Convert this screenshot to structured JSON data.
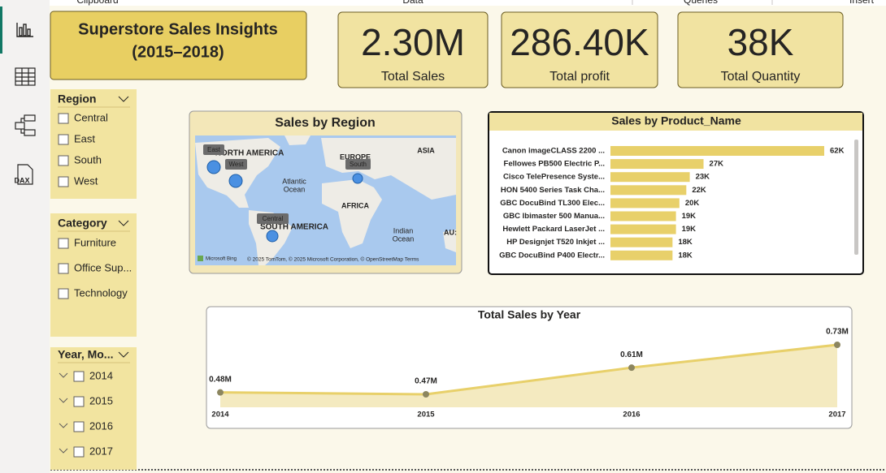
{
  "ribbon": [
    "Clipboard",
    "Data",
    "Queries",
    "Insert"
  ],
  "nav": {
    "dax_icon": "DAX"
  },
  "header": {
    "title_line1": "Superstore Sales Insights",
    "title_line2": "(2015–2018)"
  },
  "cards": [
    {
      "value": "2.30M",
      "label": "Total Sales"
    },
    {
      "value": "286.40K",
      "label": "Total profit"
    },
    {
      "value": "38K",
      "label": "Total Quantity"
    }
  ],
  "slicers": [
    {
      "title": "Region",
      "items": [
        "Central",
        "East",
        "South",
        "West"
      ]
    },
    {
      "title": "Category",
      "items": [
        "Furniture",
        "Office Sup...",
        "Technology"
      ]
    },
    {
      "title": "Year, Mo...",
      "items": [
        "2014",
        "2015",
        "2016",
        "2017"
      ]
    }
  ],
  "map": {
    "title": "Sales by Region",
    "labels": [
      "NORTH AMERICA",
      "EUROPE",
      "ASIA",
      "Atlantic",
      "Ocean",
      "AFRICA",
      "SOUTH AMERICA",
      "Indian",
      "Ocean",
      "AU:"
    ],
    "bubbles": [
      "East",
      "West",
      "South",
      "Central"
    ],
    "bing": "Microsoft Bing",
    "attribution": "© 2025 TomTom, © 2025 Microsoft Corporation, © OpenStreetMap  Terms"
  },
  "chart_data": [
    {
      "type": "hbar",
      "title": "Sales by Product_Name",
      "color": "#e8d06a",
      "categories": [
        "Canon imageCLASS 2200 ...",
        "Fellowes PB500 Electric P...",
        "Cisco TelePresence Syste...",
        "HON 5400 Series Task Cha...",
        "GBC DocuBind TL300 Elec...",
        "GBC Ibimaster 500 Manua...",
        "Hewlett Packard LaserJet ...",
        "HP Designjet T520 Inkjet ...",
        "GBC DocuBind P400 Electr..."
      ],
      "values": [
        62000,
        27000,
        23000,
        22000,
        20000,
        19000,
        19000,
        18000,
        18000
      ],
      "value_labels": [
        "62K",
        "27K",
        "23K",
        "22K",
        "20K",
        "19K",
        "19K",
        "18K",
        "18K"
      ]
    },
    {
      "type": "area",
      "title": "Total Sales by Year",
      "color": "#e8d06a",
      "categories": [
        "2014",
        "2015",
        "2016",
        "2017"
      ],
      "values": [
        480000,
        470000,
        610000,
        730000
      ],
      "value_labels": [
        "0.48M",
        "0.47M",
        "0.61M",
        "0.73M"
      ]
    }
  ]
}
